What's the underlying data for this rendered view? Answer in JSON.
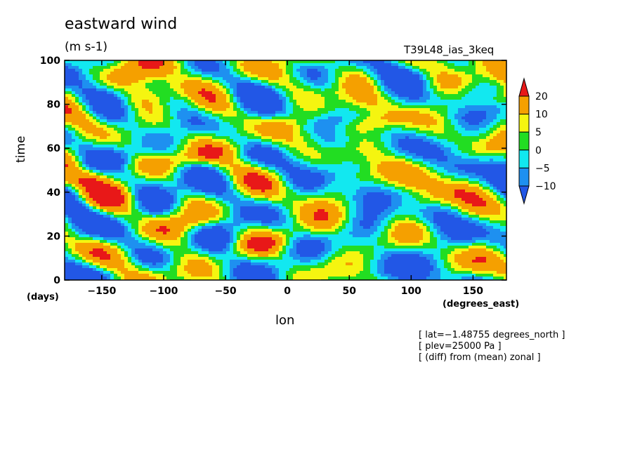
{
  "chart_data": {
    "type": "heatmap",
    "title": "eastward wind",
    "units": "(m s-1)",
    "run_label": "T39L48_ias_3keq",
    "xlabel": "lon",
    "xunit": "(degrees_east)",
    "ylabel": "time",
    "yunit": "(days)",
    "xlim": [
      -180,
      177
    ],
    "ylim": [
      0,
      100
    ],
    "x_ticks": [
      -150,
      -100,
      -50,
      0,
      50,
      100,
      150
    ],
    "x_tick_labels": [
      "−150",
      "−100",
      "−50",
      "0",
      "50",
      "100",
      "150"
    ],
    "y_ticks": [
      0,
      20,
      40,
      60,
      80,
      100
    ],
    "y_tick_labels": [
      "0",
      "20",
      "40",
      "60",
      "80",
      "100"
    ],
    "levels": [
      -10,
      -5,
      0,
      5,
      10,
      20
    ],
    "level_labels": [
      "20",
      "10",
      "5",
      "0",
      "−5",
      "−10"
    ],
    "colors": {
      "below_-10": "#2257e6",
      "-10_-5": "#1e90f0",
      "-5_0": "#12e8f0",
      "0_5": "#22dd22",
      "5_10": "#f5f510",
      "10_20": "#f5a000",
      "above_20": "#e81818"
    },
    "annotations": [
      "[ lat=−1.48755 degrees_north ]",
      "[ plev=25000 Pa ]",
      "[ (diff) from (mean) zonal ]"
    ]
  }
}
